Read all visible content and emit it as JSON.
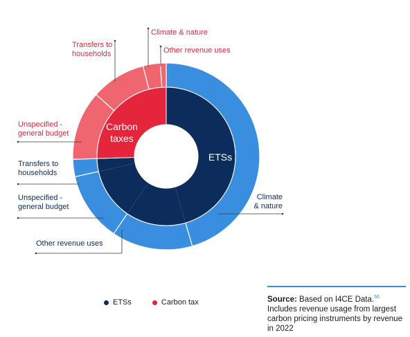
{
  "chart_data": {
    "type": "donut",
    "inner_ring": {
      "segments": [
        {
          "name": "ETSs",
          "label": "ETSs",
          "share": 0.745,
          "color": "#0c2c5c"
        },
        {
          "name": "Carbon tax",
          "label": "Carbon\ntaxes",
          "share": 0.255,
          "color": "#e5253c"
        }
      ]
    },
    "outer_ring": {
      "segments": [
        {
          "name": "ETSs – Climate & nature",
          "parent": "ETSs",
          "share": 0.455,
          "color": "#3a8ee0"
        },
        {
          "name": "ETSs – Other revenue uses",
          "parent": "ETSs",
          "share": 0.14,
          "color": "#3a8ee0"
        },
        {
          "name": "ETSs – Unspecified - general budget",
          "parent": "ETSs",
          "share": 0.12,
          "color": "#3a8ee0"
        },
        {
          "name": "ETSs – Transfers to households",
          "parent": "ETSs",
          "share": 0.03,
          "color": "#3a8ee0"
        },
        {
          "name": "Carbon tax – Unspecified - general budget",
          "parent": "Carbon tax",
          "share": 0.12,
          "color": "#ef6670"
        },
        {
          "name": "Carbon tax – Transfers to households",
          "parent": "Carbon tax",
          "share": 0.095,
          "color": "#ef6670"
        },
        {
          "name": "Carbon tax – Climate & nature",
          "parent": "Carbon tax",
          "share": 0.03,
          "color": "#ef6670"
        },
        {
          "name": "Carbon tax – Other revenue uses",
          "parent": "Carbon tax",
          "share": 0.01,
          "color": "#ef6670"
        }
      ]
    },
    "callouts": [
      {
        "id": "ct-climate",
        "text": [
          "Climate & nature"
        ],
        "color": "#e5253c"
      },
      {
        "id": "ct-transfers",
        "text": [
          "Transfers to",
          "households"
        ],
        "color": "#e5253c"
      },
      {
        "id": "ct-other",
        "text": [
          "Other revenue uses"
        ],
        "color": "#e5253c"
      },
      {
        "id": "ct-unspec",
        "text": [
          "Unspecified -",
          "general budget"
        ],
        "color": "#e5253c"
      },
      {
        "id": "ets-transfers",
        "text": [
          "Transfers to",
          "households"
        ],
        "color": "#0c2c5c"
      },
      {
        "id": "ets-unspec",
        "text": [
          "Unspecified -",
          "general budget"
        ],
        "color": "#0c2c5c"
      },
      {
        "id": "ets-other",
        "text": [
          "Other revenue uses"
        ],
        "color": "#0c2c5c"
      },
      {
        "id": "ets-climate",
        "text": [
          "Climate",
          "& nature"
        ],
        "color": "#0c2c5c"
      }
    ],
    "legend": [
      {
        "label": "ETSs",
        "color": "#0c2c5c"
      },
      {
        "label": "Carbon tax",
        "color": "#e5253c"
      }
    ],
    "legend_position": "bottom"
  },
  "source": {
    "label": "Source:",
    "text": " Based on I4CE Data.",
    "footnote": "56",
    "note": "Includes revenue usage from largest carbon pricing instruments by revenue in 2022"
  }
}
